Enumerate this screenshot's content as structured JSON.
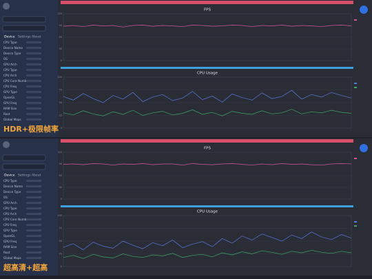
{
  "panels": [
    {
      "caption": "HDR+极限帧率",
      "tabs": [
        "Device",
        "Settings",
        "About"
      ],
      "info": [
        "CPU Type",
        "Device Name",
        "Device Type",
        "OS",
        "GPU Arch",
        "CPU Type",
        "CPU Arch",
        "CPU Core Number",
        "CPU Freq",
        "GPU Type",
        "OpenGL",
        "GPU Freq",
        "RAM Size",
        "Root",
        "Global Maps"
      ],
      "charts": [
        {
          "title": "FPS",
          "ylim": [
            0,
            120
          ],
          "yticks": [
            0,
            30,
            60,
            90,
            120
          ],
          "series": [
            {
              "color": "#d9539a",
              "values": [
                88,
                90,
                87,
                91,
                89,
                90,
                86,
                90,
                91,
                88,
                90,
                89,
                87,
                91,
                90,
                88,
                89,
                91,
                90,
                87,
                90,
                89,
                91,
                88,
                90,
                89,
                87,
                90,
                91,
                89
              ]
            }
          ]
        },
        {
          "title": "CPU Usage",
          "ylim": [
            0,
            100
          ],
          "yticks": [
            0,
            25,
            50,
            75,
            100
          ],
          "series": [
            {
              "color": "#5a7be0",
              "values": [
                62,
                55,
                68,
                58,
                50,
                64,
                57,
                70,
                52,
                61,
                66,
                54,
                59,
                72,
                56,
                63,
                51,
                67,
                60,
                55,
                69,
                58,
                62,
                74,
                57,
                66,
                61,
                70,
                64,
                59
              ]
            },
            {
              "color": "#3fa86a",
              "values": [
                30,
                26,
                34,
                28,
                24,
                32,
                27,
                35,
                25,
                30,
                33,
                26,
                29,
                36,
                27,
                31,
                24,
                33,
                29,
                27,
                34,
                28,
                30,
                37,
                28,
                32,
                30,
                35,
                31,
                29
              ]
            }
          ]
        }
      ]
    },
    {
      "caption": "超高清+超高",
      "tabs": [
        "Device",
        "Settings",
        "About"
      ],
      "info": [
        "CPU Type",
        "Device Name",
        "Device Type",
        "OS",
        "GPU Arch",
        "CPU Type",
        "CPU Arch",
        "CPU Core Number",
        "CPU Freq",
        "GPU Type",
        "OpenGL",
        "GPU Freq",
        "RAM Size",
        "Root",
        "Global Maps"
      ],
      "charts": [
        {
          "title": "FPS",
          "ylim": [
            0,
            120
          ],
          "yticks": [
            0,
            30,
            60,
            90,
            120
          ],
          "series": [
            {
              "color": "#d9539a",
              "values": [
                89,
                90,
                88,
                91,
                90,
                87,
                90,
                89,
                91,
                88,
                90,
                90,
                87,
                91,
                89,
                88,
                90,
                91,
                89,
                87,
                90,
                88,
                91,
                89,
                90,
                88,
                87,
                90,
                91,
                90
              ]
            }
          ]
        },
        {
          "title": "CPU Usage",
          "ylim": [
            0,
            100
          ],
          "yticks": [
            0,
            25,
            50,
            75,
            100
          ],
          "series": [
            {
              "color": "#5a7be0",
              "values": [
                38,
                45,
                33,
                48,
                40,
                36,
                50,
                42,
                35,
                47,
                41,
                52,
                37,
                44,
                49,
                39,
                55,
                46,
                60,
                52,
                64,
                57,
                50,
                62,
                55,
                68,
                58,
                53,
                63,
                56
              ]
            },
            {
              "color": "#3fa86a",
              "values": [
                18,
                22,
                16,
                24,
                19,
                17,
                25,
                20,
                18,
                23,
                21,
                26,
                18,
                22,
                24,
                19,
                27,
                23,
                29,
                25,
                31,
                28,
                24,
                30,
                27,
                32,
                28,
                26,
                30,
                27
              ]
            }
          ]
        }
      ]
    }
  ]
}
